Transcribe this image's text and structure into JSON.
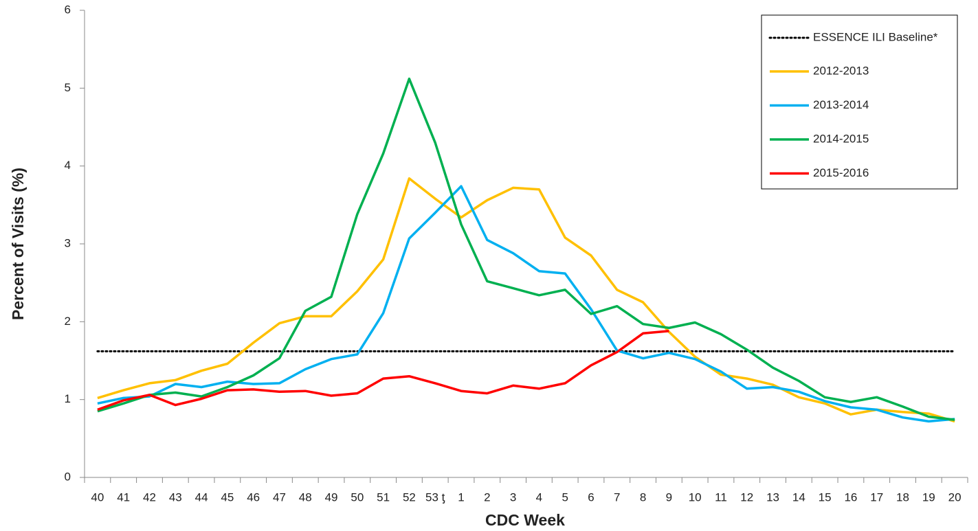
{
  "chart_data": {
    "type": "line",
    "x_label": "CDC Week",
    "y_label": "Percent of Visits (%)",
    "categories": [
      "40",
      "41",
      "42",
      "43",
      "44",
      "45",
      "46",
      "47",
      "48",
      "49",
      "50",
      "51",
      "52",
      "53 ƫ",
      "1",
      "2",
      "3",
      "4",
      "5",
      "6",
      "7",
      "8",
      "9",
      "10",
      "11",
      "12",
      "13",
      "14",
      "15",
      "16",
      "17",
      "18",
      "19",
      "20"
    ],
    "ylim": [
      0,
      6
    ],
    "yticks": [
      0,
      1,
      2,
      3,
      4,
      5,
      6
    ],
    "reference_line": {
      "name": "ESSENCE ILI Baseline*",
      "value": 1.62,
      "color": "#000000"
    },
    "series": [
      {
        "name": "2012-2013",
        "color": "#FFC000",
        "values": [
          1.02,
          1.12,
          1.21,
          1.25,
          1.37,
          1.46,
          1.73,
          1.98,
          2.07,
          2.07,
          2.39,
          2.8,
          3.84,
          3.58,
          3.34,
          3.56,
          3.72,
          3.7,
          3.08,
          2.85,
          2.41,
          2.25,
          1.87,
          1.55,
          1.32,
          1.27,
          1.19,
          1.03,
          0.95,
          0.81,
          0.87,
          0.84,
          0.82,
          0.72
        ]
      },
      {
        "name": "2013-2014",
        "color": "#00B0F0",
        "values": [
          0.95,
          1.02,
          1.04,
          1.2,
          1.16,
          1.23,
          1.2,
          1.21,
          1.39,
          1.52,
          1.58,
          2.11,
          3.07,
          3.4,
          3.74,
          3.05,
          2.88,
          2.65,
          2.62,
          2.16,
          1.63,
          1.53,
          1.6,
          1.52,
          1.36,
          1.14,
          1.16,
          1.1,
          0.98,
          0.9,
          0.87,
          0.77,
          0.72,
          0.75
        ]
      },
      {
        "name": "2014-2015",
        "color": "#00B050",
        "values": [
          0.85,
          0.95,
          1.06,
          1.09,
          1.04,
          1.16,
          1.31,
          1.53,
          2.14,
          2.32,
          3.38,
          4.16,
          5.12,
          4.3,
          3.25,
          2.52,
          2.43,
          2.34,
          2.41,
          2.1,
          2.2,
          1.97,
          1.92,
          1.99,
          1.84,
          1.64,
          1.41,
          1.24,
          1.03,
          0.97,
          1.03,
          0.91,
          0.78,
          0.74
        ]
      },
      {
        "name": "2015-2016",
        "color": "#FF0000",
        "values": [
          0.87,
          0.99,
          1.06,
          0.93,
          1.01,
          1.12,
          1.13,
          1.1,
          1.11,
          1.05,
          1.08,
          1.27,
          1.3,
          1.21,
          1.11,
          1.08,
          1.18,
          1.14,
          1.21,
          1.44,
          1.61,
          1.85,
          1.88,
          null,
          null,
          null,
          null,
          null,
          null,
          null,
          null,
          null,
          null,
          null
        ]
      }
    ]
  }
}
